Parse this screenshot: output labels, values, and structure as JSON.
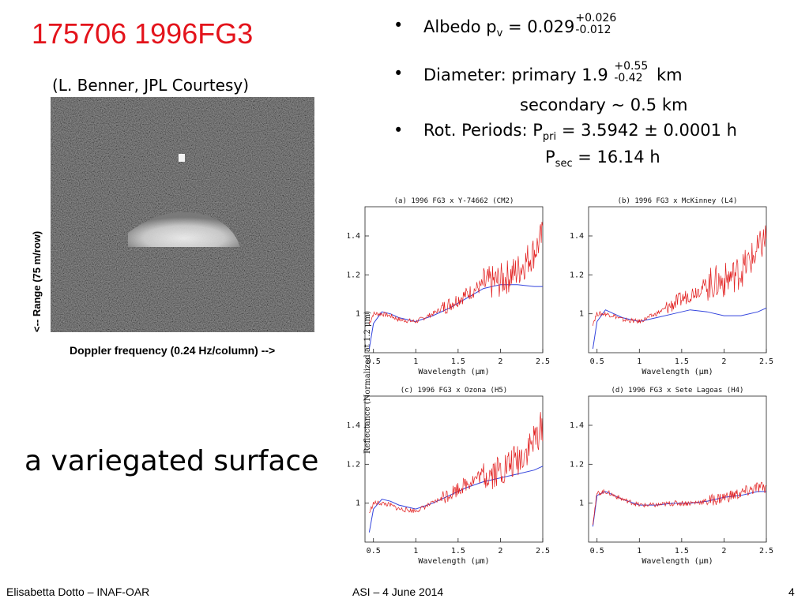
{
  "title": "175706 1996FG3",
  "radar": {
    "credit": "(L. Benner, JPL Courtesy)",
    "xlabel": "Doppler frequency (0.24 Hz/column) -->",
    "ylabel": "<-- Range (75 m/row)"
  },
  "caption": "a variegated surface",
  "bullets": {
    "bullet_glyph": "•",
    "albedo": {
      "label": "Albedo p",
      "sub": "v",
      "eq": " = 0.029",
      "plus": "+0.026",
      "minus": "-0.012"
    },
    "diameter": {
      "label": "Diameter: primary 1.9 ",
      "plus": "+0.55",
      "minus": "-0.42",
      "unit": " km",
      "secondary": "secondary  ~ 0.5 km"
    },
    "periods": {
      "label": "Rot. Periods: P",
      "pri_sub": "pri",
      "pri_val": " =  3.5942 ± 0.0001 h",
      "sec_p": "P",
      "sec_sub": "sec",
      "sec_val": " = 16.14 h"
    }
  },
  "spectra": {
    "ylabel": "Reflectance (Normalized at 1.2 μm)",
    "xlabel": "Wavelength (μm)",
    "x_ticks": [
      "0.5",
      "1",
      "1.5",
      "2",
      "2.5"
    ],
    "y_ticks": [
      "1",
      "1.2",
      "1.4"
    ],
    "panels": [
      {
        "title": "(a) 1996 FG3 x Y-74662 (CM2)"
      },
      {
        "title": "(b) 1996 FG3 x McKinney (L4)"
      },
      {
        "title": "(c) 1996 FG3 x Ozona (H5)"
      },
      {
        "title": "(d) 1996 FG3 x Sete Lagoas (H4)"
      }
    ]
  },
  "chart_data": {
    "type": "line",
    "xlim": [
      0.4,
      2.5
    ],
    "ylim": [
      0.8,
      1.55
    ],
    "panels": [
      {
        "asteroid": {
          "x": [
            0.45,
            0.5,
            0.6,
            0.7,
            0.8,
            1.0,
            1.2,
            1.4,
            1.6,
            1.8,
            2.0,
            2.2,
            2.4,
            2.5
          ],
          "y": [
            0.95,
            1.0,
            1.0,
            0.99,
            0.97,
            0.96,
            1.0,
            1.05,
            1.1,
            1.15,
            1.17,
            1.22,
            1.32,
            1.4
          ]
        },
        "meteorite": {
          "x": [
            0.45,
            0.5,
            0.6,
            0.7,
            0.8,
            1.0,
            1.2,
            1.4,
            1.6,
            1.8,
            2.0,
            2.2,
            2.4,
            2.5
          ],
          "y": [
            0.82,
            0.95,
            1.01,
            1.0,
            0.98,
            0.96,
            0.99,
            1.03,
            1.08,
            1.13,
            1.15,
            1.15,
            1.14,
            1.14
          ]
        }
      },
      {
        "asteroid": {
          "x": [
            0.45,
            0.5,
            0.6,
            0.7,
            0.8,
            1.0,
            1.2,
            1.4,
            1.6,
            1.8,
            2.0,
            2.2,
            2.4,
            2.5
          ],
          "y": [
            0.95,
            1.0,
            1.0,
            0.99,
            0.97,
            0.96,
            1.0,
            1.05,
            1.1,
            1.15,
            1.17,
            1.22,
            1.32,
            1.4
          ]
        },
        "meteorite": {
          "x": [
            0.45,
            0.5,
            0.6,
            0.7,
            0.8,
            1.0,
            1.2,
            1.4,
            1.6,
            1.8,
            2.0,
            2.2,
            2.4,
            2.5
          ],
          "y": [
            0.82,
            0.96,
            1.02,
            1.0,
            0.98,
            0.96,
            0.98,
            1.0,
            1.02,
            1.01,
            0.99,
            0.99,
            1.01,
            1.03
          ]
        }
      },
      {
        "asteroid": {
          "x": [
            0.45,
            0.5,
            0.6,
            0.7,
            0.8,
            1.0,
            1.2,
            1.4,
            1.6,
            1.8,
            2.0,
            2.2,
            2.4,
            2.5
          ],
          "y": [
            0.95,
            1.0,
            1.0,
            0.99,
            0.97,
            0.96,
            1.0,
            1.05,
            1.1,
            1.15,
            1.17,
            1.22,
            1.32,
            1.4
          ]
        },
        "meteorite": {
          "x": [
            0.45,
            0.5,
            0.6,
            0.7,
            0.8,
            1.0,
            1.2,
            1.4,
            1.6,
            1.8,
            2.0,
            2.2,
            2.4,
            2.5
          ],
          "y": [
            0.85,
            0.97,
            1.02,
            1.01,
            0.99,
            0.97,
            1.0,
            1.04,
            1.08,
            1.11,
            1.13,
            1.15,
            1.17,
            1.19
          ]
        }
      },
      {
        "asteroid": {
          "x": [
            0.45,
            0.5,
            0.6,
            0.7,
            0.8,
            1.0,
            1.2,
            1.4,
            1.6,
            1.8,
            2.0,
            2.2,
            2.4,
            2.5
          ],
          "y": [
            0.9,
            1.05,
            1.06,
            1.04,
            1.02,
            0.99,
            0.99,
            1.0,
            1.0,
            1.01,
            1.03,
            1.05,
            1.08,
            1.08
          ]
        },
        "meteorite": {
          "x": [
            0.45,
            0.5,
            0.6,
            0.7,
            0.8,
            1.0,
            1.2,
            1.4,
            1.6,
            1.8,
            2.0,
            2.2,
            2.4,
            2.5
          ],
          "y": [
            0.88,
            1.04,
            1.06,
            1.04,
            1.02,
            0.99,
            0.99,
            1.0,
            1.0,
            1.01,
            1.03,
            1.04,
            1.06,
            1.06
          ]
        }
      }
    ]
  }
}
